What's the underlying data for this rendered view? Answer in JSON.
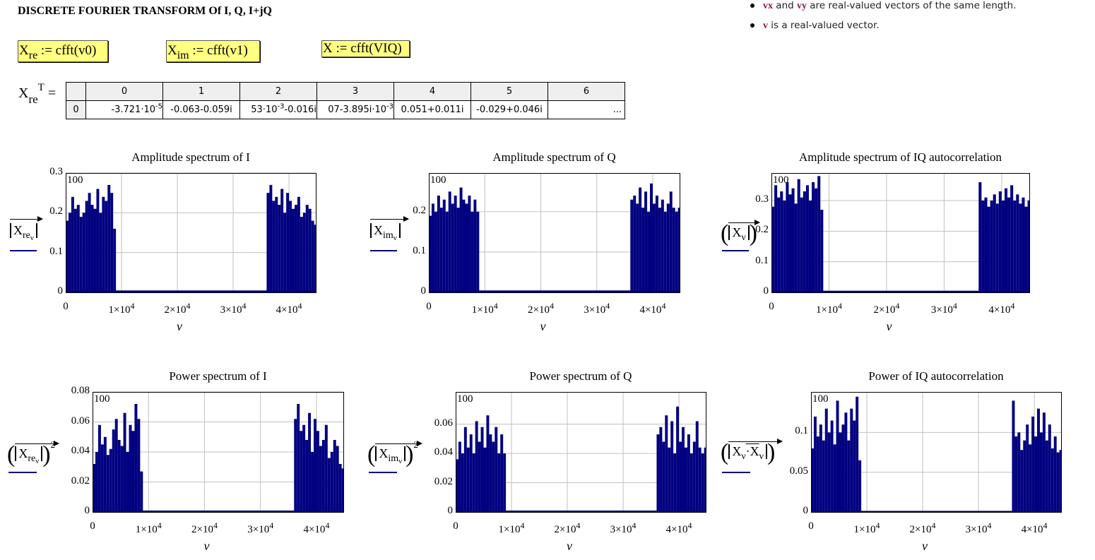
{
  "header": {
    "title": "DISCRETE FOURIER TRANSFORM Of I, Q, I+jQ"
  },
  "help": [
    {
      "k1": "vx",
      "t1": " and ",
      "k2": "vy",
      "t2": " are real-valued vectors of the same length."
    },
    {
      "k1": "v",
      "t1": " is a real-valued vector."
    }
  ],
  "definitions": [
    {
      "var": "X",
      "sub": "re",
      "rest": " := cfft(v0)"
    },
    {
      "var": "X",
      "sub": "im",
      "rest": " := cfft(v1)"
    },
    {
      "var": "X",
      "sub": "",
      "rest": " := cfft(VIQ)"
    }
  ],
  "table": {
    "lhs": {
      "var": "X",
      "sub": "re",
      "sup": "T",
      "eq": " ="
    },
    "columns": [
      "0",
      "1",
      "2",
      "3",
      "4",
      "5",
      "6"
    ],
    "rows": [
      {
        "index": "0",
        "cells": [
          {
            "text": "-3.721·10",
            "sup": "-5",
            "tail": ""
          },
          {
            "text": "-0.063-0.059i",
            "sup": "",
            "tail": ""
          },
          {
            "text": "53·10",
            "sup": "-3",
            "tail": "-0.016i"
          },
          {
            "text": "07-3.895i·10",
            "sup": "-3",
            "tail": ""
          },
          {
            "text": "0.051+0.011i",
            "sup": "",
            "tail": ""
          },
          {
            "text": "-0.029+0.046i",
            "sup": "",
            "tail": ""
          },
          {
            "text": "...",
            "sup": "",
            "tail": ""
          }
        ]
      }
    ]
  },
  "ylabels": [
    {
      "var": "X",
      "sub": "re",
      "subsub": "ν",
      "pow": ""
    },
    {
      "var": "X",
      "sub": "im",
      "subsub": "ν",
      "pow": ""
    },
    {
      "var": "X",
      "sub": "ν",
      "subsub": "",
      "pow": ""
    },
    {
      "var": "X",
      "sub": "re",
      "subsub": "ν",
      "pow": "2"
    },
    {
      "var": "X",
      "sub": "im",
      "subsub": "ν",
      "pow": "2"
    },
    {
      "var": "X",
      "sub": "ν",
      "subsub": "",
      "pow": "",
      "conj": "·X",
      "conj_sub": "ν"
    }
  ],
  "chart_data": [
    {
      "type": "bar",
      "title": "Amplitude spectrum of I",
      "xlabel": "ν",
      "marker_label": "100",
      "color": "#000080",
      "grid": true,
      "xlim": [
        0,
        44800
      ],
      "ylim": [
        0,
        0.3
      ],
      "xticks": [
        0,
        10000,
        20000,
        30000,
        40000
      ],
      "xtick_labels": [
        "0",
        "1×10⁴",
        "2×10⁴",
        "3×10⁴",
        "4×10⁴"
      ],
      "yticks": [
        0,
        0.1,
        0.2,
        0.3
      ],
      "ytick_labels": [
        "0",
        "0.1",
        "0.2",
        "0.3"
      ],
      "baseline": 0.003,
      "bands": [
        {
          "x_start": 0,
          "x_step": 500,
          "y": [
            0.18,
            0.2,
            0.24,
            0.21,
            0.22,
            0.19,
            0.2,
            0.23,
            0.25,
            0.22,
            0.21,
            0.26,
            0.2,
            0.24,
            0.23,
            0.27,
            0.25,
            0.16
          ]
        },
        {
          "x_start": 36000,
          "x_step": 500,
          "y": [
            0.25,
            0.27,
            0.23,
            0.24,
            0.22,
            0.26,
            0.2,
            0.25,
            0.23,
            0.21,
            0.22,
            0.24,
            0.19,
            0.2,
            0.22,
            0.21,
            0.18,
            0.17
          ]
        }
      ]
    },
    {
      "type": "bar",
      "title": "Amplitude spectrum of Q",
      "xlabel": "ν",
      "marker_label": "100",
      "color": "#000080",
      "grid": true,
      "xlim": [
        0,
        44800
      ],
      "ylim": [
        0,
        0.296
      ],
      "xticks": [
        0,
        10000,
        20000,
        30000,
        40000
      ],
      "xtick_labels": [
        "0",
        "1×10⁴",
        "2×10⁴",
        "3×10⁴",
        "4×10⁴"
      ],
      "yticks": [
        0,
        0.1,
        0.2
      ],
      "ytick_labels": [
        "0",
        "0.1",
        "0.2"
      ],
      "baseline": 0.003,
      "bands": [
        {
          "x_start": 0,
          "x_step": 500,
          "y": [
            0.19,
            0.22,
            0.2,
            0.24,
            0.21,
            0.23,
            0.2,
            0.25,
            0.22,
            0.24,
            0.21,
            0.26,
            0.23,
            0.22,
            0.24,
            0.2,
            0.23,
            0.2
          ]
        },
        {
          "x_start": 36000,
          "x_step": 500,
          "y": [
            0.23,
            0.24,
            0.22,
            0.26,
            0.21,
            0.25,
            0.2,
            0.27,
            0.22,
            0.24,
            0.21,
            0.23,
            0.2,
            0.22,
            0.25,
            0.21,
            0.2,
            0.21
          ]
        }
      ]
    },
    {
      "type": "bar",
      "title": "Amplitude spectrum of IQ autocorrelation",
      "xlabel": "ν",
      "marker_label": "100",
      "color": "#000080",
      "grid": true,
      "xlim": [
        0,
        44800
      ],
      "ylim": [
        0,
        0.39
      ],
      "xticks": [
        0,
        10000,
        20000,
        30000,
        40000
      ],
      "xtick_labels": [
        "0",
        "1×10⁴",
        "2×10⁴",
        "3×10⁴",
        "4×10⁴"
      ],
      "yticks": [
        0,
        0.1,
        0.2,
        0.3
      ],
      "ytick_labels": [
        "0",
        "0.1",
        "0.2",
        "0.3"
      ],
      "baseline": 0.003,
      "bands": [
        {
          "x_start": 0,
          "x_step": 500,
          "y": [
            0.28,
            0.35,
            0.31,
            0.33,
            0.3,
            0.36,
            0.32,
            0.34,
            0.29,
            0.37,
            0.31,
            0.33,
            0.35,
            0.3,
            0.36,
            0.34,
            0.38,
            0.27
          ]
        },
        {
          "x_start": 36000,
          "x_step": 500,
          "y": [
            0.36,
            0.3,
            0.31,
            0.28,
            0.3,
            0.32,
            0.29,
            0.33,
            0.3,
            0.34,
            0.31,
            0.35,
            0.3,
            0.32,
            0.29,
            0.31,
            0.28,
            0.3
          ]
        }
      ]
    },
    {
      "type": "bar",
      "title": "Power spectrum of I",
      "xlabel": "ν",
      "marker_label": "100",
      "color": "#000080",
      "grid": true,
      "xlim": [
        0,
        44800
      ],
      "ylim": [
        0,
        0.08
      ],
      "xticks": [
        0,
        10000,
        20000,
        30000,
        40000
      ],
      "xtick_labels": [
        "0",
        "1×10⁴",
        "2×10⁴",
        "3×10⁴",
        "4×10⁴"
      ],
      "yticks": [
        0,
        0.02,
        0.04,
        0.06,
        0.08
      ],
      "ytick_labels": [
        "0",
        "0.02",
        "0.04",
        "0.06",
        "0.08"
      ],
      "baseline": 0.0005,
      "bands": [
        {
          "x_start": 0,
          "x_step": 500,
          "y": [
            0.032,
            0.04,
            0.058,
            0.045,
            0.05,
            0.038,
            0.042,
            0.055,
            0.062,
            0.048,
            0.044,
            0.066,
            0.04,
            0.058,
            0.054,
            0.072,
            0.062,
            0.027
          ]
        },
        {
          "x_start": 36000,
          "x_step": 500,
          "y": [
            0.062,
            0.072,
            0.054,
            0.058,
            0.048,
            0.066,
            0.04,
            0.062,
            0.054,
            0.044,
            0.048,
            0.058,
            0.036,
            0.04,
            0.048,
            0.044,
            0.032,
            0.029
          ]
        }
      ]
    },
    {
      "type": "bar",
      "title": "Power spectrum of Q",
      "xlabel": "ν",
      "marker_label": "100",
      "color": "#000080",
      "grid": true,
      "xlim": [
        0,
        44800
      ],
      "ylim": [
        0,
        0.082
      ],
      "xticks": [
        0,
        10000,
        20000,
        30000,
        40000
      ],
      "xtick_labels": [
        "0",
        "1×10⁴",
        "2×10⁴",
        "3×10⁴",
        "4×10⁴"
      ],
      "yticks": [
        0,
        0.02,
        0.04,
        0.06
      ],
      "ytick_labels": [
        "0",
        "0.02",
        "0.04",
        "0.06"
      ],
      "baseline": 0.0005,
      "bands": [
        {
          "x_start": 0,
          "x_step": 500,
          "y": [
            0.036,
            0.048,
            0.04,
            0.058,
            0.044,
            0.053,
            0.04,
            0.062,
            0.048,
            0.058,
            0.044,
            0.066,
            0.053,
            0.048,
            0.058,
            0.04,
            0.053,
            0.04
          ]
        },
        {
          "x_start": 36000,
          "x_step": 500,
          "y": [
            0.053,
            0.058,
            0.048,
            0.066,
            0.044,
            0.062,
            0.04,
            0.072,
            0.048,
            0.058,
            0.044,
            0.053,
            0.04,
            0.048,
            0.062,
            0.044,
            0.04,
            0.044
          ]
        }
      ]
    },
    {
      "type": "bar",
      "title": "Power of IQ autocorrelation",
      "xlabel": "ν",
      "marker_label": "100",
      "color": "#000080",
      "grid": true,
      "xlim": [
        0,
        44800
      ],
      "ylim": [
        0,
        0.151
      ],
      "xticks": [
        0,
        10000,
        20000,
        30000,
        40000
      ],
      "xtick_labels": [
        "0",
        "1×10⁴",
        "2×10⁴",
        "3×10⁴",
        "4×10⁴"
      ],
      "yticks": [
        0,
        0.05,
        0.1
      ],
      "ytick_labels": [
        "0",
        "0.05",
        "0.1"
      ],
      "baseline": 0.0005,
      "bands": [
        {
          "x_start": 0,
          "x_step": 500,
          "y": [
            0.08,
            0.12,
            0.095,
            0.11,
            0.09,
            0.13,
            0.1,
            0.115,
            0.085,
            0.14,
            0.1,
            0.11,
            0.125,
            0.09,
            0.13,
            0.115,
            0.145,
            0.065
          ]
        },
        {
          "x_start": 36000,
          "x_step": 500,
          "y": [
            0.14,
            0.095,
            0.1,
            0.078,
            0.09,
            0.11,
            0.085,
            0.12,
            0.095,
            0.13,
            0.1,
            0.125,
            0.09,
            0.11,
            0.08,
            0.095,
            0.075,
            0.078
          ]
        }
      ]
    }
  ]
}
